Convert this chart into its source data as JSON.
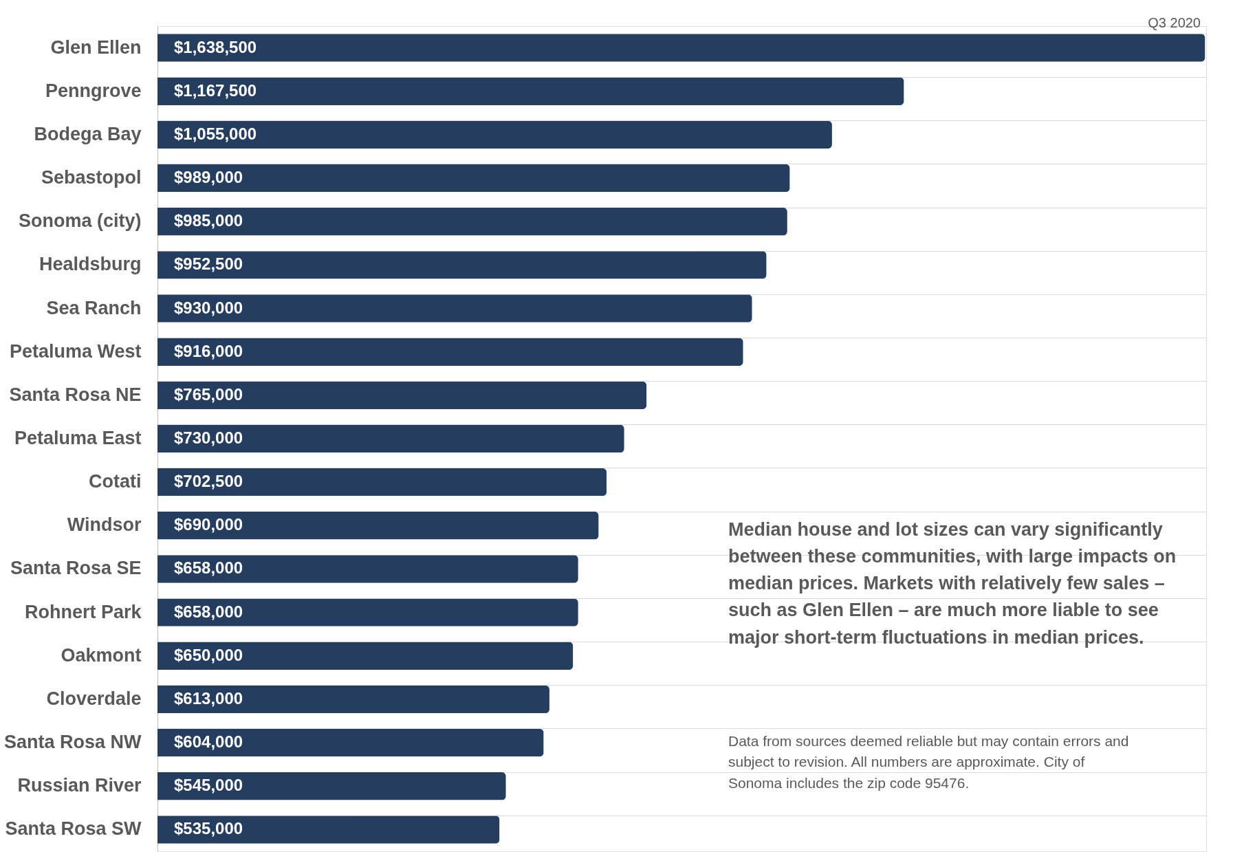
{
  "chart_data": {
    "type": "bar",
    "orientation": "horizontal",
    "grid": "y",
    "tick_labels": "y",
    "categories": [
      "Glen Ellen",
      "Penngrove",
      "Bodega Bay",
      "Sebastopol",
      "Sonoma (city)",
      "Healdsburg",
      "Sea Ranch",
      "Petaluma West",
      "Santa Rosa NE",
      "Petaluma East",
      "Cotati",
      "Windsor",
      "Santa Rosa SE",
      "Rohnert Park",
      "Oakmont",
      "Cloverdale",
      "Santa Rosa NW",
      "Russian River",
      "Santa Rosa SW"
    ],
    "values": [
      1638500,
      1167500,
      1055000,
      989000,
      985000,
      952500,
      930000,
      916000,
      765000,
      730000,
      702500,
      690000,
      658000,
      658000,
      650000,
      613000,
      604000,
      545000,
      535000
    ],
    "value_labels": [
      "$1,638,500",
      "$1,167,500",
      "$1,055,000",
      "$989,000",
      "$985,000",
      "$952,500",
      "$930,000",
      "$916,000",
      "$765,000",
      "$730,000",
      "$702,500",
      "$690,000",
      "$658,000",
      "$658,000",
      "$650,000",
      "$613,000",
      "$604,000",
      "$545,000",
      "$535,000"
    ],
    "color": "#253d5f",
    "annotations": [
      "Q3 2020",
      "Median house and lot sizes can vary significantly between these communities, with large impacts on median prices. Markets with relatively few sales – such as Glen Ellen – are much more liable to see major short-term fluctuations in median prices.",
      "Data from sources deemed reliable but may contain errors and subject to revision. All numbers are approximate. City of Sonoma includes the zip code 95476."
    ]
  }
}
